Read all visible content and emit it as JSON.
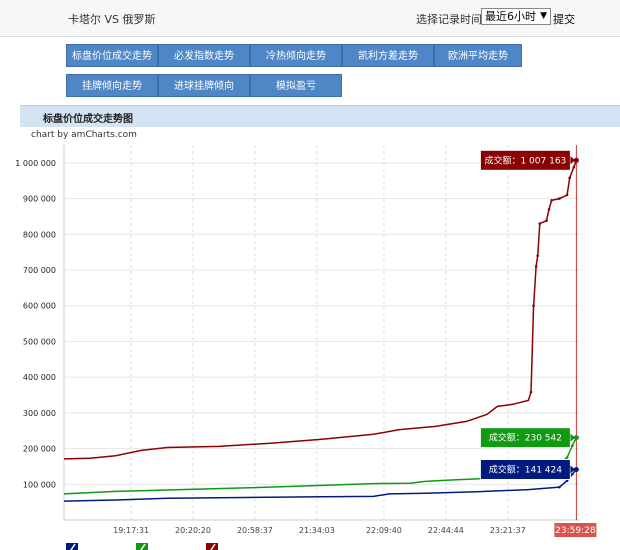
{
  "header": {
    "match_title": "卡塔尔 VS 俄罗斯",
    "time_label": "选择记录时间:",
    "time_select_value": "最近6小时",
    "submit_label": "提交"
  },
  "nav": {
    "buttons": [
      "标盘价位成交走势",
      "必发指数走势",
      "冷热倾向走势",
      "凯利方差走势",
      "欧洲平均走势",
      "挂牌倾向走势",
      "进球挂牌倾向",
      "模拟盈亏"
    ]
  },
  "section": {
    "title": "标盘价位成交走势图",
    "credit": "chart by amCharts.com"
  },
  "colors": {
    "red": "#8b0000",
    "green": "#119911",
    "blue": "#001a80",
    "accent": "#4f86c6"
  },
  "chart_data": {
    "type": "line",
    "y_ticks": [
      "1 000 000",
      "900 000",
      "800 000",
      "700 000",
      "600 000",
      "500 000",
      "400 000",
      "300 000",
      "200 000",
      "100 000"
    ],
    "x_ticks": [
      "19:17:31",
      "20:20:20",
      "20:58:37",
      "21:34:03",
      "22:09:40",
      "22:44:44",
      "23:21:37"
    ],
    "cursor_label": "23:59:28",
    "ylim": [
      0,
      1050000
    ],
    "grid": true,
    "series": [
      {
        "name": "",
        "color": "#8b0000",
        "label": "成交额：1 007 163",
        "points": [
          [
            0,
            171000
          ],
          [
            0.05,
            173000
          ],
          [
            0.1,
            180000
          ],
          [
            0.15,
            195000
          ],
          [
            0.2,
            203000
          ],
          [
            0.3,
            206000
          ],
          [
            0.4,
            215000
          ],
          [
            0.5,
            226000
          ],
          [
            0.6,
            240000
          ],
          [
            0.65,
            253000
          ],
          [
            0.72,
            262000
          ],
          [
            0.78,
            276000
          ],
          [
            0.82,
            296000
          ],
          [
            0.84,
            318000
          ],
          [
            0.87,
            324000
          ],
          [
            0.9,
            335000
          ],
          [
            0.905,
            358000
          ],
          [
            0.91,
            600000
          ],
          [
            0.915,
            710000
          ],
          [
            0.918,
            740000
          ],
          [
            0.922,
            830000
          ],
          [
            0.935,
            838000
          ],
          [
            0.94,
            870000
          ],
          [
            0.945,
            895000
          ],
          [
            0.96,
            900000
          ],
          [
            0.975,
            910000
          ],
          [
            0.98,
            958000
          ],
          [
            0.988,
            988000
          ],
          [
            0.993,
            1007163
          ]
        ]
      },
      {
        "name": "",
        "color": "#119911",
        "label": "成交额：230 542",
        "points": [
          [
            0,
            73000
          ],
          [
            0.1,
            80000
          ],
          [
            0.2,
            84000
          ],
          [
            0.35,
            90000
          ],
          [
            0.5,
            97000
          ],
          [
            0.6,
            102000
          ],
          [
            0.67,
            103000
          ],
          [
            0.7,
            108000
          ],
          [
            0.75,
            112000
          ],
          [
            0.8,
            115000
          ],
          [
            0.85,
            120000
          ],
          [
            0.9,
            128000
          ],
          [
            0.93,
            130000
          ],
          [
            0.96,
            158000
          ],
          [
            0.975,
            175000
          ],
          [
            0.985,
            208000
          ],
          [
            0.993,
            230542
          ]
        ]
      },
      {
        "name": "",
        "color": "#001a80",
        "label": "成交额：141 424",
        "points": [
          [
            0,
            53000
          ],
          [
            0.1,
            56000
          ],
          [
            0.2,
            61000
          ],
          [
            0.35,
            63000
          ],
          [
            0.5,
            65000
          ],
          [
            0.6,
            66000
          ],
          [
            0.63,
            73000
          ],
          [
            0.7,
            75000
          ],
          [
            0.8,
            79000
          ],
          [
            0.9,
            85000
          ],
          [
            0.96,
            92000
          ],
          [
            0.975,
            110000
          ],
          [
            0.985,
            128000
          ],
          [
            0.993,
            141424
          ]
        ]
      }
    ]
  }
}
